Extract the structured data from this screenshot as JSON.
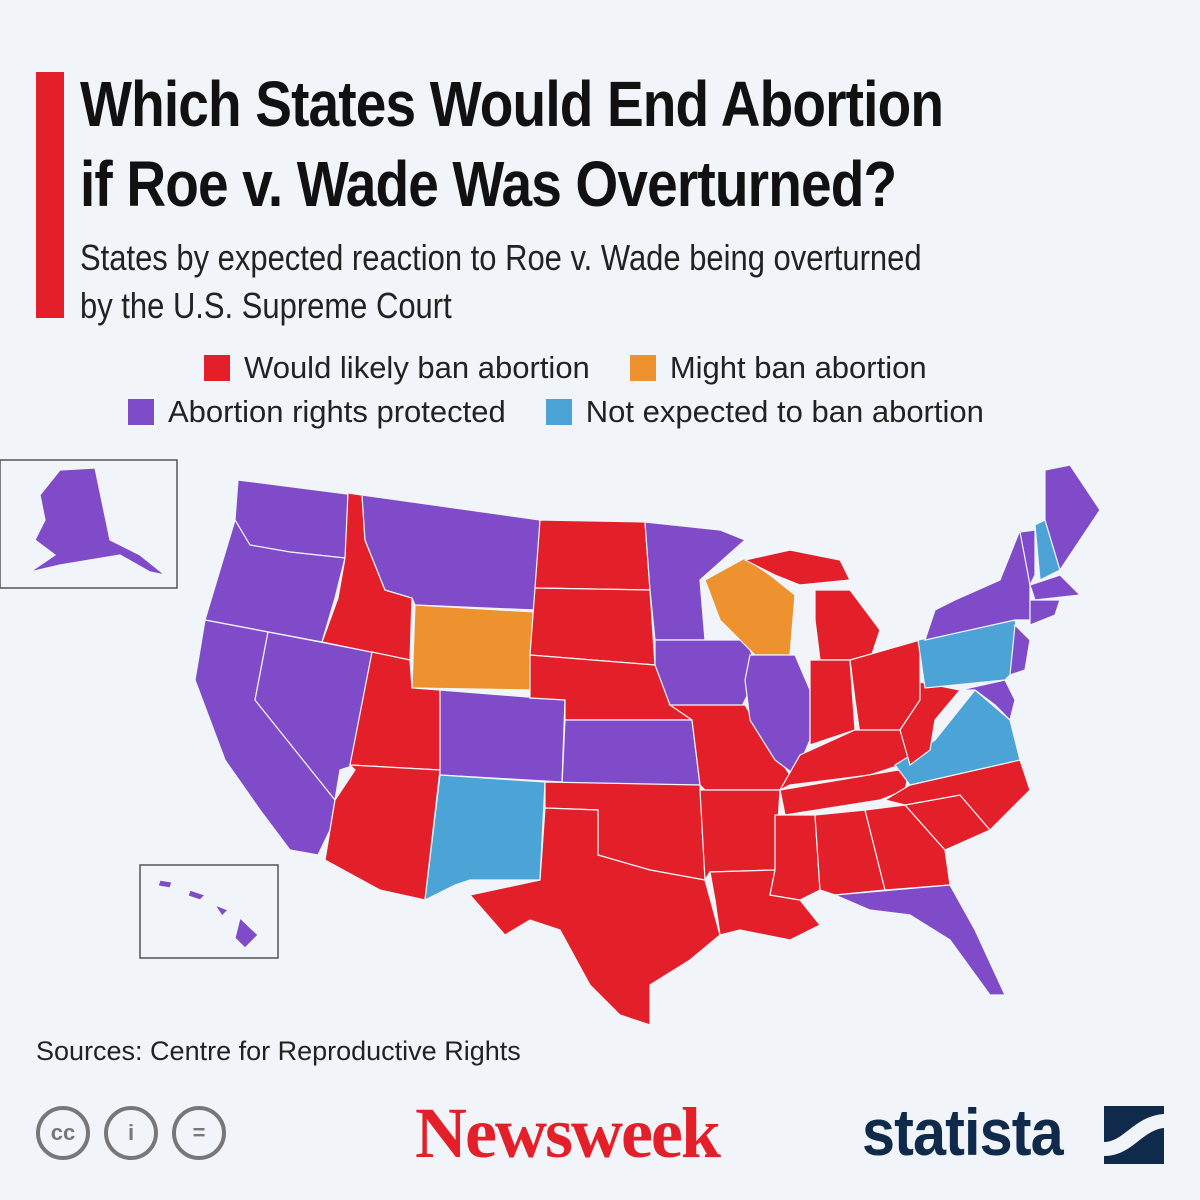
{
  "header": {
    "title_line1": "Which States Would End Abortion",
    "title_line2": "if Roe v. Wade Was Overturned?",
    "subtitle_line1": "States by expected reaction to Roe v. Wade being overturned",
    "subtitle_line2": "by the U.S. Supreme Court"
  },
  "legend": [
    {
      "key": "ban",
      "label": "Would likely ban abortion",
      "color": "#e3202a"
    },
    {
      "key": "might",
      "label": "Might ban abortion",
      "color": "#ee922f"
    },
    {
      "key": "protected",
      "label": "Abortion rights protected",
      "color": "#7f4bc8"
    },
    {
      "key": "notexpected",
      "label": "Not expected to ban abortion",
      "color": "#4ba3d6"
    }
  ],
  "states": {
    "WA": "protected",
    "OR": "protected",
    "CA": "protected",
    "NV": "protected",
    "ID": "ban",
    "MT": "protected",
    "WY": "might",
    "UT": "ban",
    "AZ": "ban",
    "CO": "protected",
    "NM": "notexpected",
    "ND": "ban",
    "SD": "ban",
    "NE": "ban",
    "KS": "protected",
    "OK": "ban",
    "TX": "ban",
    "MN": "protected",
    "IA": "protected",
    "MO": "ban",
    "AR": "ban",
    "LA": "ban",
    "WI": "might",
    "IL": "protected",
    "MI": "ban",
    "MIU": "ban",
    "IN": "ban",
    "OH": "ban",
    "KY": "ban",
    "TN": "ban",
    "MS": "ban",
    "AL": "ban",
    "GA": "ban",
    "FL": "protected",
    "SC": "ban",
    "NC": "ban",
    "VA": "notexpected",
    "WV": "ban",
    "PA": "notexpected",
    "NY": "protected",
    "NJ": "protected",
    "MD": "protected",
    "VT": "protected",
    "NH": "notexpected",
    "ME": "protected",
    "MA": "protected",
    "CT": "protected",
    "AK": "protected",
    "HI": "protected"
  },
  "footer": {
    "source": "Sources: Centre for Reproductive Rights",
    "cc_icons": [
      "cc-icon",
      "attribution-icon",
      "no-derivatives-icon"
    ],
    "cc_labels": [
      "cc",
      "i",
      "="
    ],
    "newsweek": "Newsweek",
    "statista": "statista"
  }
}
